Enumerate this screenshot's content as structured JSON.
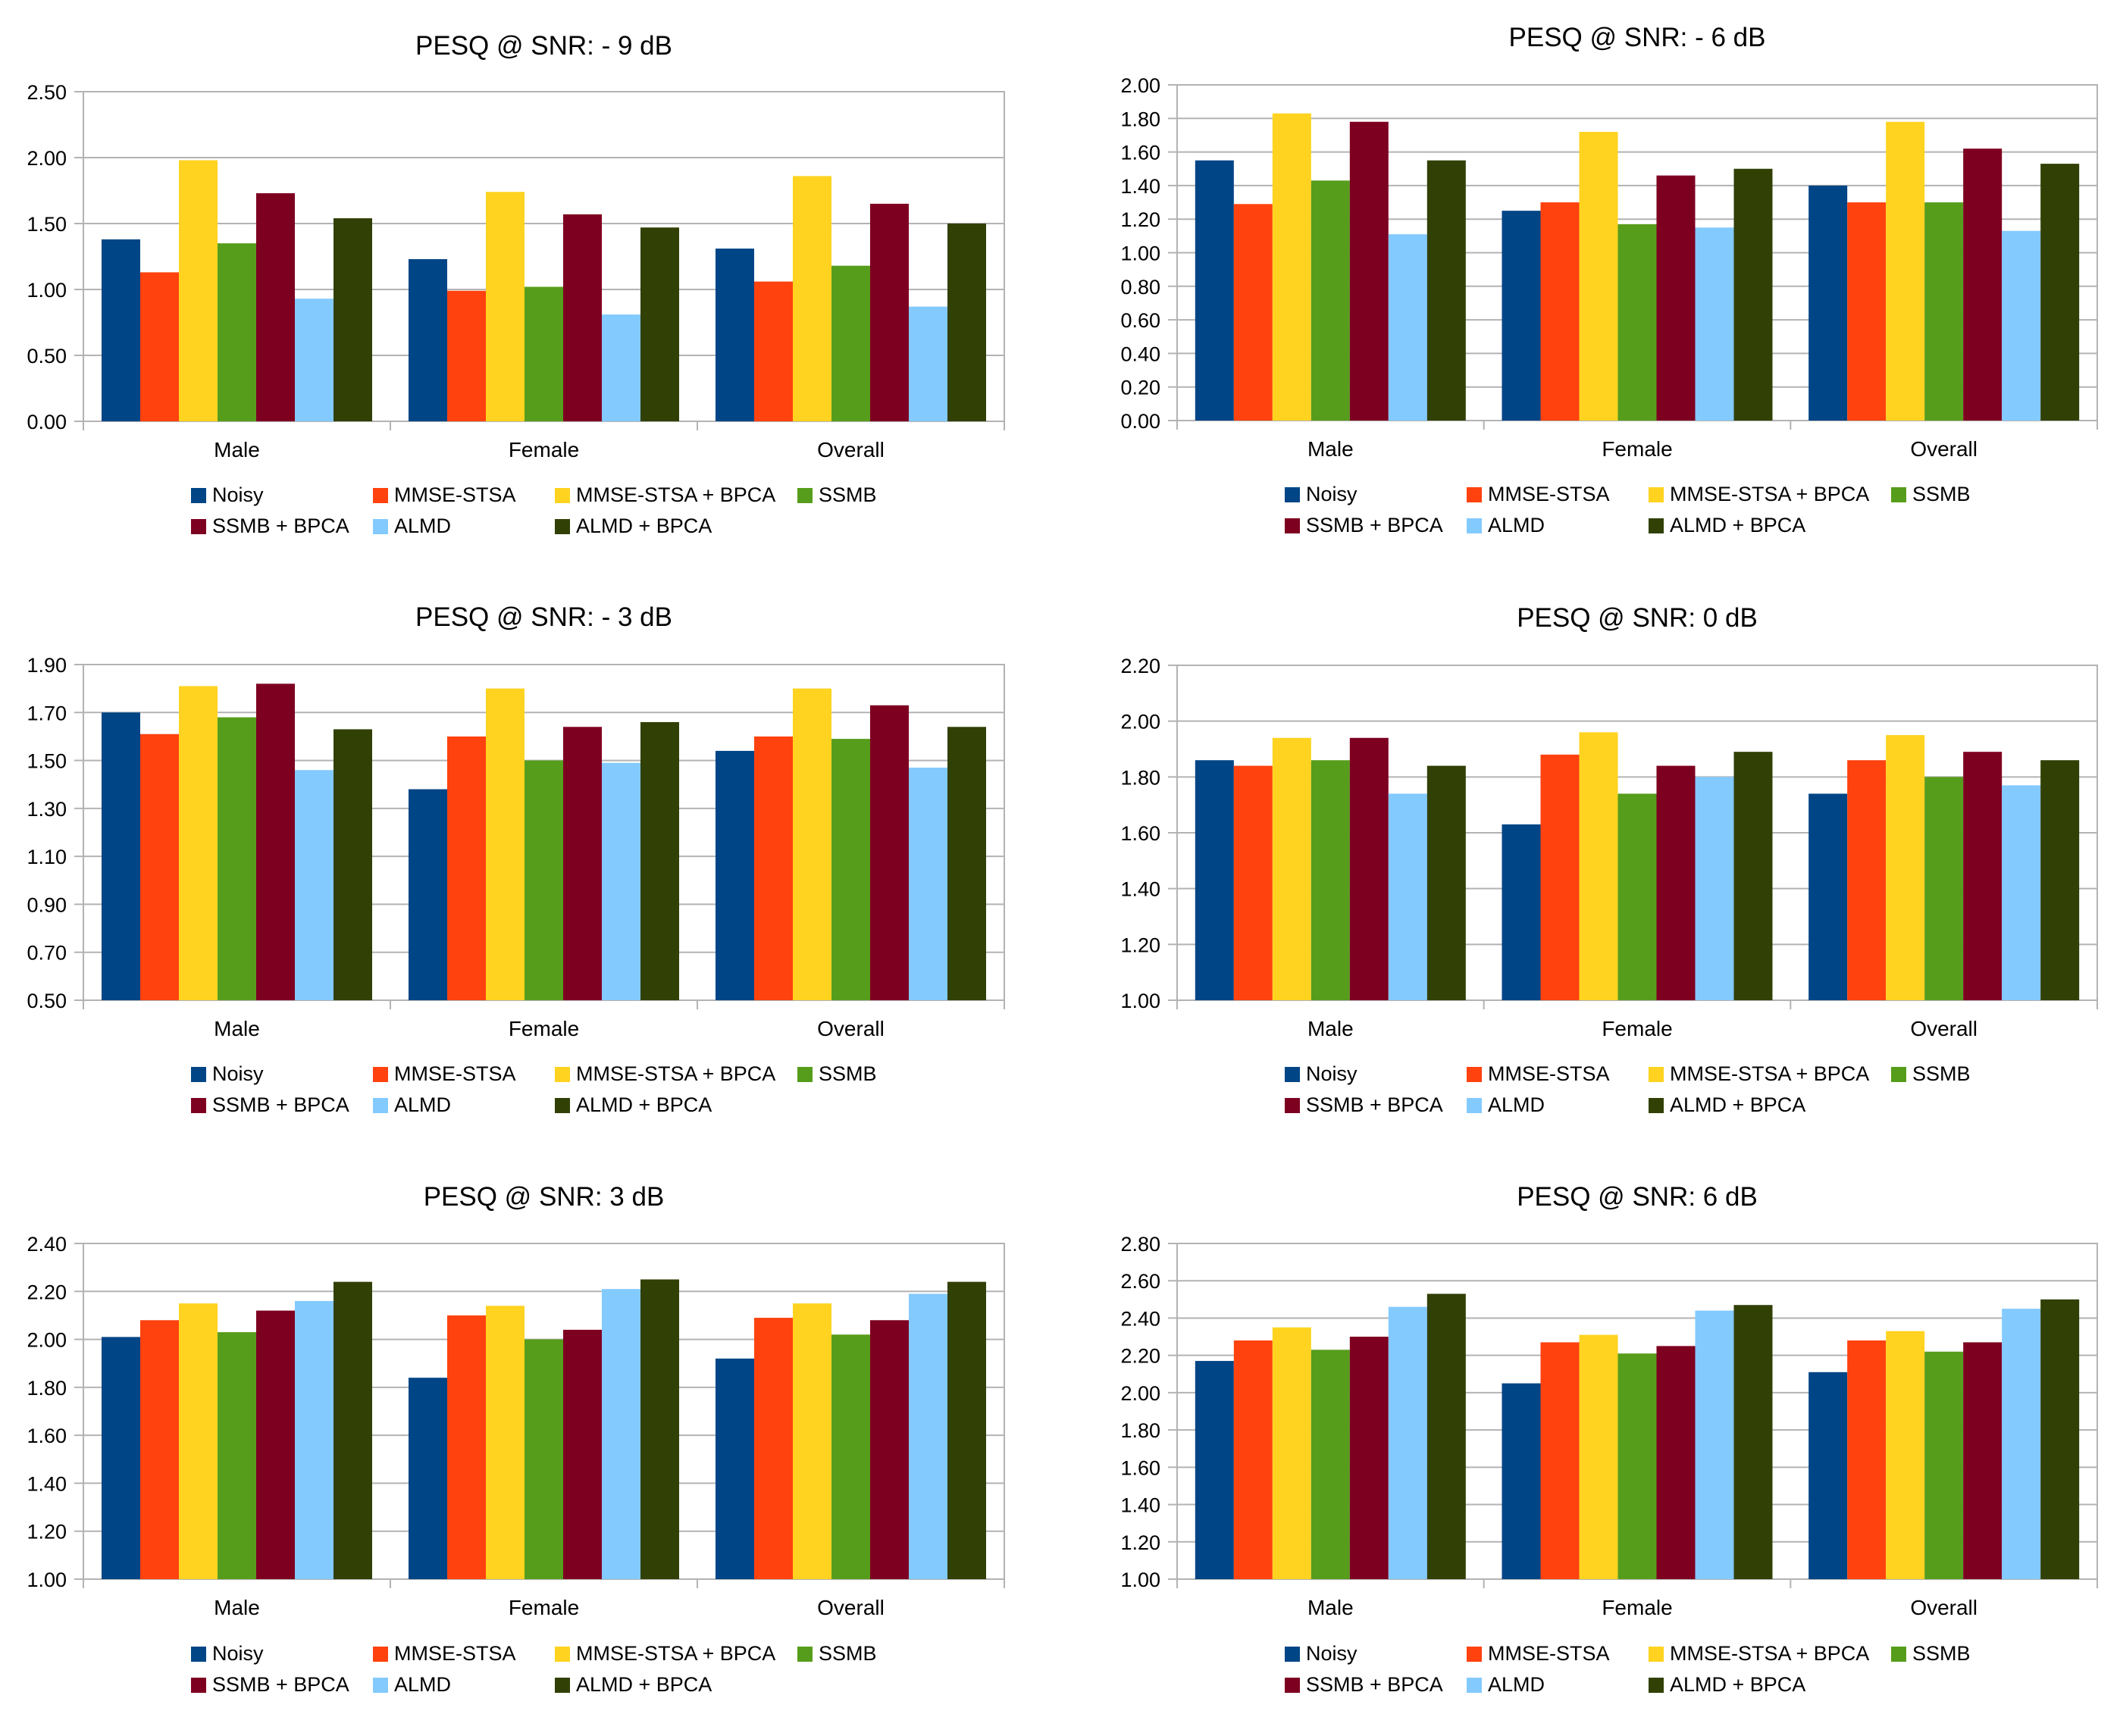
{
  "colors": {
    "series": [
      "#004586",
      "#ff420e",
      "#ffd320",
      "#579d1c",
      "#7e0021",
      "#83caff",
      "#314004"
    ],
    "grid": "#b3b3b3",
    "axis": "#b3b3b3"
  },
  "legend": {
    "placement": "bottom"
  },
  "chart_data": [
    {
      "type": "bar",
      "title": "PESQ @ SNR: - 9 dB",
      "categories": [
        "Male",
        "Female",
        "Overall"
      ],
      "ylim": [
        0,
        2.5
      ],
      "yticks": [
        "0.00",
        "0.50",
        "1.00",
        "1.50",
        "2.00",
        "2.50"
      ],
      "series": [
        {
          "name": "Noisy",
          "values": [
            1.38,
            1.23,
            1.31
          ]
        },
        {
          "name": "MMSE-STSA",
          "values": [
            1.13,
            0.99,
            1.06
          ]
        },
        {
          "name": "MMSE-STSA + BPCA",
          "values": [
            1.98,
            1.74,
            1.86
          ]
        },
        {
          "name": "SSMB",
          "values": [
            1.35,
            1.02,
            1.18
          ]
        },
        {
          "name": "SSMB + BPCA",
          "values": [
            1.73,
            1.57,
            1.65
          ]
        },
        {
          "name": "ALMD",
          "values": [
            0.93,
            0.81,
            0.87
          ]
        },
        {
          "name": "ALMD + BPCA",
          "values": [
            1.54,
            1.47,
            1.5
          ]
        }
      ]
    },
    {
      "type": "bar",
      "title": "PESQ @ SNR: - 6 dB",
      "categories": [
        "Male",
        "Female",
        "Overall"
      ],
      "ylim": [
        0,
        2.0
      ],
      "yticks": [
        "0.00",
        "0.20",
        "0.40",
        "0.60",
        "0.80",
        "1.00",
        "1.20",
        "1.40",
        "1.60",
        "1.80",
        "2.00"
      ],
      "series": [
        {
          "name": "Noisy",
          "values": [
            1.55,
            1.25,
            1.4
          ]
        },
        {
          "name": "MMSE-STSA",
          "values": [
            1.29,
            1.3,
            1.3
          ]
        },
        {
          "name": "MMSE-STSA + BPCA",
          "values": [
            1.83,
            1.72,
            1.78
          ]
        },
        {
          "name": "SSMB",
          "values": [
            1.43,
            1.17,
            1.3
          ]
        },
        {
          "name": "SSMB + BPCA",
          "values": [
            1.78,
            1.46,
            1.62
          ]
        },
        {
          "name": "ALMD",
          "values": [
            1.11,
            1.15,
            1.13
          ]
        },
        {
          "name": "ALMD + BPCA",
          "values": [
            1.55,
            1.5,
            1.53
          ]
        }
      ]
    },
    {
      "type": "bar",
      "title": "PESQ @ SNR: - 3 dB",
      "categories": [
        "Male",
        "Female",
        "Overall"
      ],
      "ylim": [
        0.5,
        1.9
      ],
      "yticks": [
        "0.50",
        "0.70",
        "0.90",
        "1.10",
        "1.30",
        "1.50",
        "1.70",
        "1.90"
      ],
      "series": [
        {
          "name": "Noisy",
          "values": [
            1.7,
            1.38,
            1.54
          ]
        },
        {
          "name": "MMSE-STSA",
          "values": [
            1.61,
            1.6,
            1.6
          ]
        },
        {
          "name": "MMSE-STSA + BPCA",
          "values": [
            1.81,
            1.8,
            1.8
          ]
        },
        {
          "name": "SSMB",
          "values": [
            1.68,
            1.5,
            1.59
          ]
        },
        {
          "name": "SSMB + BPCA",
          "values": [
            1.82,
            1.64,
            1.73
          ]
        },
        {
          "name": "ALMD",
          "values": [
            1.46,
            1.49,
            1.47
          ]
        },
        {
          "name": "ALMD + BPCA",
          "values": [
            1.63,
            1.66,
            1.64
          ]
        }
      ]
    },
    {
      "type": "bar",
      "title": "PESQ @ SNR: 0 dB",
      "categories": [
        "Male",
        "Female",
        "Overall"
      ],
      "ylim": [
        1.0,
        2.2
      ],
      "yticks": [
        "1.00",
        "1.20",
        "1.40",
        "1.60",
        "1.80",
        "2.00",
        "2.20"
      ],
      "series": [
        {
          "name": "Noisy",
          "values": [
            1.86,
            1.63,
            1.74
          ]
        },
        {
          "name": "MMSE-STSA",
          "values": [
            1.84,
            1.88,
            1.86
          ]
        },
        {
          "name": "MMSE-STSA + BPCA",
          "values": [
            1.94,
            1.96,
            1.95
          ]
        },
        {
          "name": "SSMB",
          "values": [
            1.86,
            1.74,
            1.8
          ]
        },
        {
          "name": "SSMB + BPCA",
          "values": [
            1.94,
            1.84,
            1.89
          ]
        },
        {
          "name": "ALMD",
          "values": [
            1.74,
            1.8,
            1.77
          ]
        },
        {
          "name": "ALMD + BPCA",
          "values": [
            1.84,
            1.89,
            1.86
          ]
        }
      ]
    },
    {
      "type": "bar",
      "title": "PESQ @ SNR: 3 dB",
      "categories": [
        "Male",
        "Female",
        "Overall"
      ],
      "ylim": [
        1.0,
        2.4
      ],
      "yticks": [
        "1.00",
        "1.20",
        "1.40",
        "1.60",
        "1.80",
        "2.00",
        "2.20",
        "2.40"
      ],
      "series": [
        {
          "name": "Noisy",
          "values": [
            2.01,
            1.84,
            1.92
          ]
        },
        {
          "name": "MMSE-STSA",
          "values": [
            2.08,
            2.1,
            2.09
          ]
        },
        {
          "name": "MMSE-STSA + BPCA",
          "values": [
            2.15,
            2.14,
            2.15
          ]
        },
        {
          "name": "SSMB",
          "values": [
            2.03,
            2.0,
            2.02
          ]
        },
        {
          "name": "SSMB + BPCA",
          "values": [
            2.12,
            2.04,
            2.08
          ]
        },
        {
          "name": "ALMD",
          "values": [
            2.16,
            2.21,
            2.19
          ]
        },
        {
          "name": "ALMD + BPCA",
          "values": [
            2.24,
            2.25,
            2.24
          ]
        }
      ]
    },
    {
      "type": "bar",
      "title": "PESQ @ SNR: 6 dB",
      "categories": [
        "Male",
        "Female",
        "Overall"
      ],
      "ylim": [
        1.0,
        2.8
      ],
      "yticks": [
        "1.00",
        "1.20",
        "1.40",
        "1.60",
        "1.80",
        "2.00",
        "2.20",
        "2.40",
        "2.60",
        "2.80"
      ],
      "series": [
        {
          "name": "Noisy",
          "values": [
            2.17,
            2.05,
            2.11
          ]
        },
        {
          "name": "MMSE-STSA",
          "values": [
            2.28,
            2.27,
            2.28
          ]
        },
        {
          "name": "MMSE-STSA + BPCA",
          "values": [
            2.35,
            2.31,
            2.33
          ]
        },
        {
          "name": "SSMB",
          "values": [
            2.23,
            2.21,
            2.22
          ]
        },
        {
          "name": "SSMB + BPCA",
          "values": [
            2.3,
            2.25,
            2.27
          ]
        },
        {
          "name": "ALMD",
          "values": [
            2.46,
            2.44,
            2.45
          ]
        },
        {
          "name": "ALMD + BPCA",
          "values": [
            2.53,
            2.47,
            2.5
          ]
        }
      ]
    }
  ]
}
